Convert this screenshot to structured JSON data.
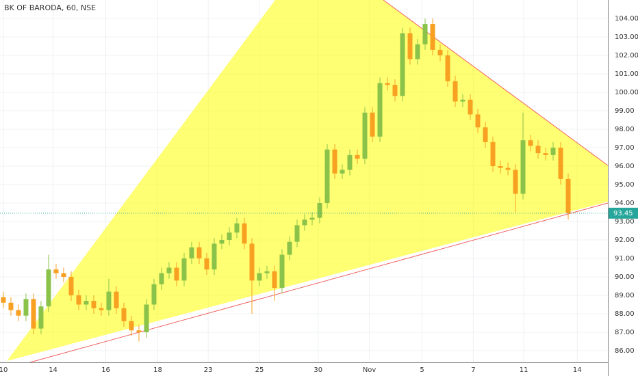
{
  "chart_data": {
    "type": "candlestick",
    "title": "BK OF BARODA, 60, NSE",
    "x": [
      0,
      1,
      2,
      3,
      4,
      5,
      6,
      7,
      8,
      9,
      10,
      11,
      12,
      13,
      14,
      15,
      16,
      17,
      18,
      19,
      20,
      21,
      22,
      23,
      24,
      25,
      26,
      27,
      28,
      29,
      30,
      31,
      32,
      33,
      34,
      35,
      36,
      37,
      38,
      39,
      40,
      41,
      42,
      43,
      44,
      45,
      46,
      47,
      48,
      49,
      50,
      51,
      52,
      53,
      54,
      55,
      56,
      57,
      58,
      59,
      60,
      61,
      62,
      63,
      64,
      65,
      66,
      67,
      68,
      69,
      70,
      71,
      72,
      73,
      74,
      75
    ],
    "open": [
      88.9,
      88.6,
      88.2,
      87.9,
      88.8,
      87.2,
      88.4,
      90.4,
      90.2,
      90.0,
      89.0,
      88.5,
      88.7,
      88.3,
      88.2,
      89.2,
      88.3,
      87.6,
      87.1,
      87.0,
      88.5,
      89.6,
      90.2,
      90.5,
      89.8,
      91.0,
      91.6,
      91.0,
      90.4,
      91.8,
      92.0,
      92.4,
      92.9,
      91.8,
      89.8,
      90.2,
      90.3,
      89.4,
      91.2,
      91.9,
      92.8,
      93.1,
      93.2,
      94.0,
      96.9,
      95.6,
      95.8,
      96.6,
      96.4,
      98.9,
      97.6,
      100.5,
      100.4,
      99.8,
      103.2,
      101.8,
      102.6,
      103.7,
      102.3,
      102.0,
      100.6,
      99.5,
      99.6,
      98.8,
      98.1,
      97.3,
      96.0,
      95.9,
      95.8,
      94.5,
      97.4,
      97.1,
      96.7,
      96.6,
      97.0,
      95.3
    ],
    "high": [
      89.2,
      88.9,
      88.5,
      89.1,
      89.1,
      88.7,
      91.2,
      90.7,
      90.5,
      90.3,
      89.3,
      89.0,
      89.0,
      88.6,
      89.9,
      89.5,
      88.6,
      87.9,
      87.4,
      88.8,
      89.9,
      90.5,
      90.8,
      90.8,
      91.3,
      91.9,
      91.9,
      91.3,
      92.1,
      92.3,
      92.7,
      93.2,
      93.2,
      92.1,
      90.5,
      90.6,
      90.6,
      91.5,
      92.2,
      93.1,
      93.4,
      93.5,
      94.3,
      97.2,
      97.2,
      96.1,
      96.9,
      96.9,
      99.2,
      99.2,
      100.8,
      100.8,
      100.7,
      103.5,
      103.5,
      102.9,
      104.0,
      104.0,
      102.6,
      102.3,
      100.9,
      99.9,
      99.9,
      99.1,
      98.4,
      97.6,
      96.3,
      96.2,
      96.1,
      98.9,
      97.7,
      97.4,
      97.0,
      97.3,
      97.3,
      95.6
    ],
    "low": [
      88.3,
      87.9,
      87.6,
      87.6,
      86.9,
      86.9,
      88.1,
      89.9,
      89.7,
      88.7,
      88.2,
      88.2,
      88.0,
      87.9,
      87.9,
      88.0,
      87.3,
      86.8,
      86.5,
      86.7,
      88.2,
      89.3,
      89.9,
      89.5,
      89.5,
      90.7,
      90.7,
      90.1,
      90.1,
      91.5,
      91.7,
      92.1,
      91.5,
      88.0,
      89.5,
      89.9,
      88.7,
      89.1,
      90.9,
      91.6,
      92.5,
      92.8,
      92.9,
      93.7,
      95.3,
      95.3,
      95.5,
      96.1,
      96.1,
      97.3,
      97.3,
      100.1,
      99.5,
      99.5,
      101.5,
      101.5,
      102.3,
      102.0,
      101.7,
      100.3,
      99.2,
      99.2,
      98.5,
      97.8,
      97.0,
      95.7,
      95.6,
      95.5,
      93.5,
      94.2,
      96.8,
      96.4,
      96.3,
      96.3,
      95.0,
      93.1
    ],
    "close": [
      88.6,
      88.2,
      87.9,
      88.8,
      87.2,
      88.4,
      90.4,
      90.2,
      90.0,
      89.0,
      88.5,
      88.7,
      88.3,
      88.2,
      89.2,
      88.3,
      87.6,
      87.1,
      87.0,
      88.5,
      89.6,
      90.2,
      90.5,
      89.8,
      91.0,
      91.6,
      91.0,
      90.4,
      91.8,
      92.0,
      92.4,
      92.9,
      91.8,
      89.8,
      90.2,
      90.3,
      89.4,
      91.2,
      91.9,
      92.8,
      93.1,
      93.2,
      94.0,
      96.9,
      95.6,
      95.8,
      96.6,
      96.4,
      98.9,
      97.6,
      100.5,
      100.4,
      99.8,
      103.2,
      101.8,
      102.6,
      103.7,
      102.3,
      102.0,
      100.6,
      99.5,
      99.6,
      98.8,
      98.1,
      97.3,
      96.0,
      95.9,
      95.8,
      94.5,
      97.4,
      97.1,
      96.7,
      96.6,
      97.0,
      95.3,
      93.45
    ],
    "up_color": "#8bc34a",
    "down_color": "#f7a021",
    "last_price": 93.45,
    "last_price_color": "#26a69a",
    "xlim": [
      -0.45,
      80.27
    ],
    "ylim": [
      85.37,
      105
    ],
    "xticks": [
      {
        "value": 0,
        "label": "10"
      },
      {
        "value": 6.6,
        "label": "14"
      },
      {
        "value": 13.6,
        "label": "16"
      },
      {
        "value": 20.5,
        "label": "18"
      },
      {
        "value": 27.2,
        "label": "23"
      },
      {
        "value": 34,
        "label": "25"
      },
      {
        "value": 41.8,
        "label": "30"
      },
      {
        "value": 48.6,
        "label": "Nov"
      },
      {
        "value": 55.6,
        "label": "5"
      },
      {
        "value": 62.4,
        "label": "7"
      },
      {
        "value": 69.1,
        "label": "11"
      },
      {
        "value": 76.2,
        "label": "14"
      }
    ],
    "yticks": [
      {
        "value": 86,
        "label": "86.00"
      },
      {
        "value": 87,
        "label": "87.00"
      },
      {
        "value": 88,
        "label": "88.00"
      },
      {
        "value": 89,
        "label": "89.00"
      },
      {
        "value": 90,
        "label": "90.00"
      },
      {
        "value": 91,
        "label": "91.00"
      },
      {
        "value": 92,
        "label": "92.00"
      },
      {
        "value": 93,
        "label": "93.00"
      },
      {
        "value": 94,
        "label": "94.00"
      },
      {
        "value": 95,
        "label": "95.00"
      },
      {
        "value": 96,
        "label": "96.00"
      },
      {
        "value": 97,
        "label": "97.00"
      },
      {
        "value": 98,
        "label": "98.00"
      },
      {
        "value": 99,
        "label": "99.00"
      },
      {
        "value": 100,
        "label": "100.00"
      },
      {
        "value": 101,
        "label": "101.00"
      },
      {
        "value": 102,
        "label": "102.00"
      },
      {
        "value": 103,
        "label": "103.00"
      },
      {
        "value": 104,
        "label": "104.00"
      }
    ],
    "grid": true
  }
}
